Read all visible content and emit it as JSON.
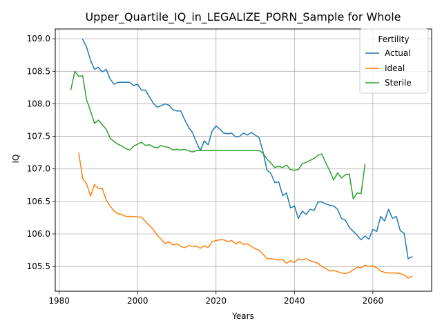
{
  "chart_data": {
    "type": "line",
    "title": "Upper_Quartile_IQ_in_LEGALIZE_PORN_Sample for Whole",
    "xlabel": "Years",
    "ylabel": "IQ",
    "xlim": [
      1979,
      2075
    ],
    "ylim": [
      105.12,
      109.15
    ],
    "xticks": [
      1980,
      2000,
      2020,
      2040,
      2060
    ],
    "yticks": [
      105.5,
      106.0,
      106.5,
      107.0,
      107.5,
      108.0,
      108.5,
      109.0
    ],
    "grid": true,
    "legend": {
      "title": "Fertility",
      "placement": "top-right"
    },
    "series": [
      {
        "name": "Actual",
        "color": "#1f77b4",
        "x": [
          1986,
          1987,
          1988,
          1989,
          1990,
          1991,
          1992,
          1993,
          1994,
          1995,
          1996,
          1997,
          1998,
          1999,
          2000,
          2001,
          2002,
          2003,
          2004,
          2005,
          2006,
          2007,
          2008,
          2009,
          2010,
          2011,
          2012,
          2013,
          2014,
          2015,
          2016,
          2017,
          2018,
          2019,
          2020,
          2021,
          2022,
          2023,
          2024,
          2025,
          2026,
          2027,
          2028,
          2029,
          2030,
          2031,
          2032,
          2033,
          2034,
          2035,
          2036,
          2037,
          2038,
          2039,
          2040,
          2041,
          2042,
          2043,
          2044,
          2045,
          2046,
          2047,
          2048,
          2049,
          2050,
          2051,
          2052,
          2053,
          2054,
          2055,
          2056,
          2057,
          2058,
          2059,
          2060,
          2061,
          2062,
          2063,
          2064,
          2065,
          2066,
          2067,
          2068,
          2069,
          2070
        ],
        "values": [
          108.99,
          108.87,
          108.67,
          108.53,
          108.56,
          108.49,
          108.53,
          108.38,
          108.3,
          108.33,
          108.33,
          108.33,
          108.33,
          108.28,
          108.3,
          108.21,
          108.21,
          108.11,
          108.01,
          107.95,
          107.97,
          108.0,
          107.98,
          107.91,
          107.89,
          107.89,
          107.76,
          107.64,
          107.56,
          107.41,
          107.28,
          107.43,
          107.37,
          107.58,
          107.66,
          107.61,
          107.55,
          107.54,
          107.55,
          107.49,
          107.5,
          107.55,
          107.52,
          107.56,
          107.52,
          107.48,
          107.26,
          106.98,
          106.93,
          106.79,
          106.8,
          106.59,
          106.63,
          106.4,
          106.43,
          106.24,
          106.35,
          106.3,
          106.38,
          106.36,
          106.49,
          106.49,
          106.46,
          106.44,
          106.43,
          106.38,
          106.24,
          106.21,
          106.1,
          106.04,
          105.98,
          105.91,
          105.97,
          105.92,
          106.07,
          106.04,
          106.27,
          106.2,
          106.38,
          106.24,
          106.27,
          106.05,
          106.01,
          105.62,
          105.65
        ]
      },
      {
        "name": "Ideal",
        "color": "#ff7f0e",
        "x": [
          1985,
          1986,
          1987,
          1988,
          1989,
          1990,
          1991,
          1992,
          1993,
          1994,
          1995,
          1996,
          1997,
          1998,
          1999,
          2000,
          2001,
          2002,
          2003,
          2004,
          2005,
          2006,
          2007,
          2008,
          2009,
          2010,
          2011,
          2012,
          2013,
          2014,
          2015,
          2016,
          2017,
          2018,
          2019,
          2020,
          2021,
          2022,
          2023,
          2024,
          2025,
          2026,
          2027,
          2028,
          2029,
          2030,
          2031,
          2032,
          2033,
          2034,
          2035,
          2036,
          2037,
          2038,
          2039,
          2040,
          2041,
          2042,
          2043,
          2044,
          2045,
          2046,
          2047,
          2048,
          2049,
          2050,
          2051,
          2052,
          2053,
          2054,
          2055,
          2056,
          2057,
          2058,
          2059,
          2060,
          2061,
          2062,
          2063,
          2064,
          2065,
          2066,
          2067,
          2068,
          2069,
          2070
        ],
        "values": [
          107.24,
          106.85,
          106.77,
          106.58,
          106.76,
          106.7,
          106.7,
          106.52,
          106.43,
          106.35,
          106.31,
          106.3,
          106.27,
          106.27,
          106.27,
          106.26,
          106.26,
          106.19,
          106.13,
          106.07,
          105.98,
          105.92,
          105.85,
          105.88,
          105.83,
          105.85,
          105.81,
          105.79,
          105.82,
          105.81,
          105.81,
          105.78,
          105.82,
          105.79,
          105.88,
          105.9,
          105.91,
          105.91,
          105.88,
          105.9,
          105.85,
          105.88,
          105.84,
          105.85,
          105.81,
          105.77,
          105.75,
          105.69,
          105.62,
          105.62,
          105.61,
          105.6,
          105.61,
          105.55,
          105.59,
          105.56,
          105.62,
          105.6,
          105.62,
          105.59,
          105.57,
          105.55,
          105.5,
          105.47,
          105.43,
          105.44,
          105.42,
          105.4,
          105.39,
          105.41,
          105.45,
          105.49,
          105.48,
          105.52,
          105.5,
          105.51,
          105.48,
          105.43,
          105.41,
          105.4,
          105.4,
          105.4,
          105.39,
          105.37,
          105.32,
          105.35
        ]
      },
      {
        "name": "Sterile",
        "color": "#2ca02c",
        "x": [
          1983,
          1984,
          1985,
          1986,
          1987,
          1988,
          1989,
          1990,
          1991,
          1992,
          1993,
          1994,
          1995,
          1996,
          1997,
          1998,
          1999,
          2000,
          2001,
          2002,
          2003,
          2004,
          2005,
          2006,
          2007,
          2008,
          2009,
          2010,
          2011,
          2012,
          2013,
          2014,
          2015,
          2016,
          2017,
          2018,
          2019,
          2020,
          2021,
          2022,
          2023,
          2024,
          2025,
          2026,
          2027,
          2028,
          2029,
          2030,
          2031,
          2032,
          2033,
          2034,
          2035,
          2036,
          2037,
          2038,
          2039,
          2040,
          2041,
          2042,
          2043,
          2044,
          2045,
          2046,
          2047,
          2048,
          2049,
          2050,
          2051,
          2052,
          2053,
          2054,
          2055,
          2056,
          2057,
          2058
        ],
        "values": [
          108.22,
          108.5,
          108.42,
          108.43,
          108.06,
          107.89,
          107.7,
          107.75,
          107.68,
          107.61,
          107.47,
          107.42,
          107.38,
          107.35,
          107.31,
          107.29,
          107.35,
          107.38,
          107.41,
          107.36,
          107.37,
          107.34,
          107.32,
          107.36,
          107.34,
          107.33,
          107.29,
          107.3,
          107.29,
          107.3,
          107.28,
          107.26,
          107.28,
          107.28,
          107.28,
          107.28,
          107.28,
          107.28,
          107.28,
          107.28,
          107.28,
          107.28,
          107.28,
          107.28,
          107.28,
          107.28,
          107.28,
          107.28,
          107.28,
          107.24,
          107.15,
          107.09,
          107.02,
          107.04,
          107.02,
          107.06,
          106.99,
          106.98,
          106.99,
          107.08,
          107.1,
          107.13,
          107.16,
          107.21,
          107.23,
          107.09,
          106.97,
          106.83,
          106.94,
          106.86,
          106.91,
          106.92,
          106.54,
          106.63,
          106.62,
          107.07
        ]
      }
    ]
  }
}
